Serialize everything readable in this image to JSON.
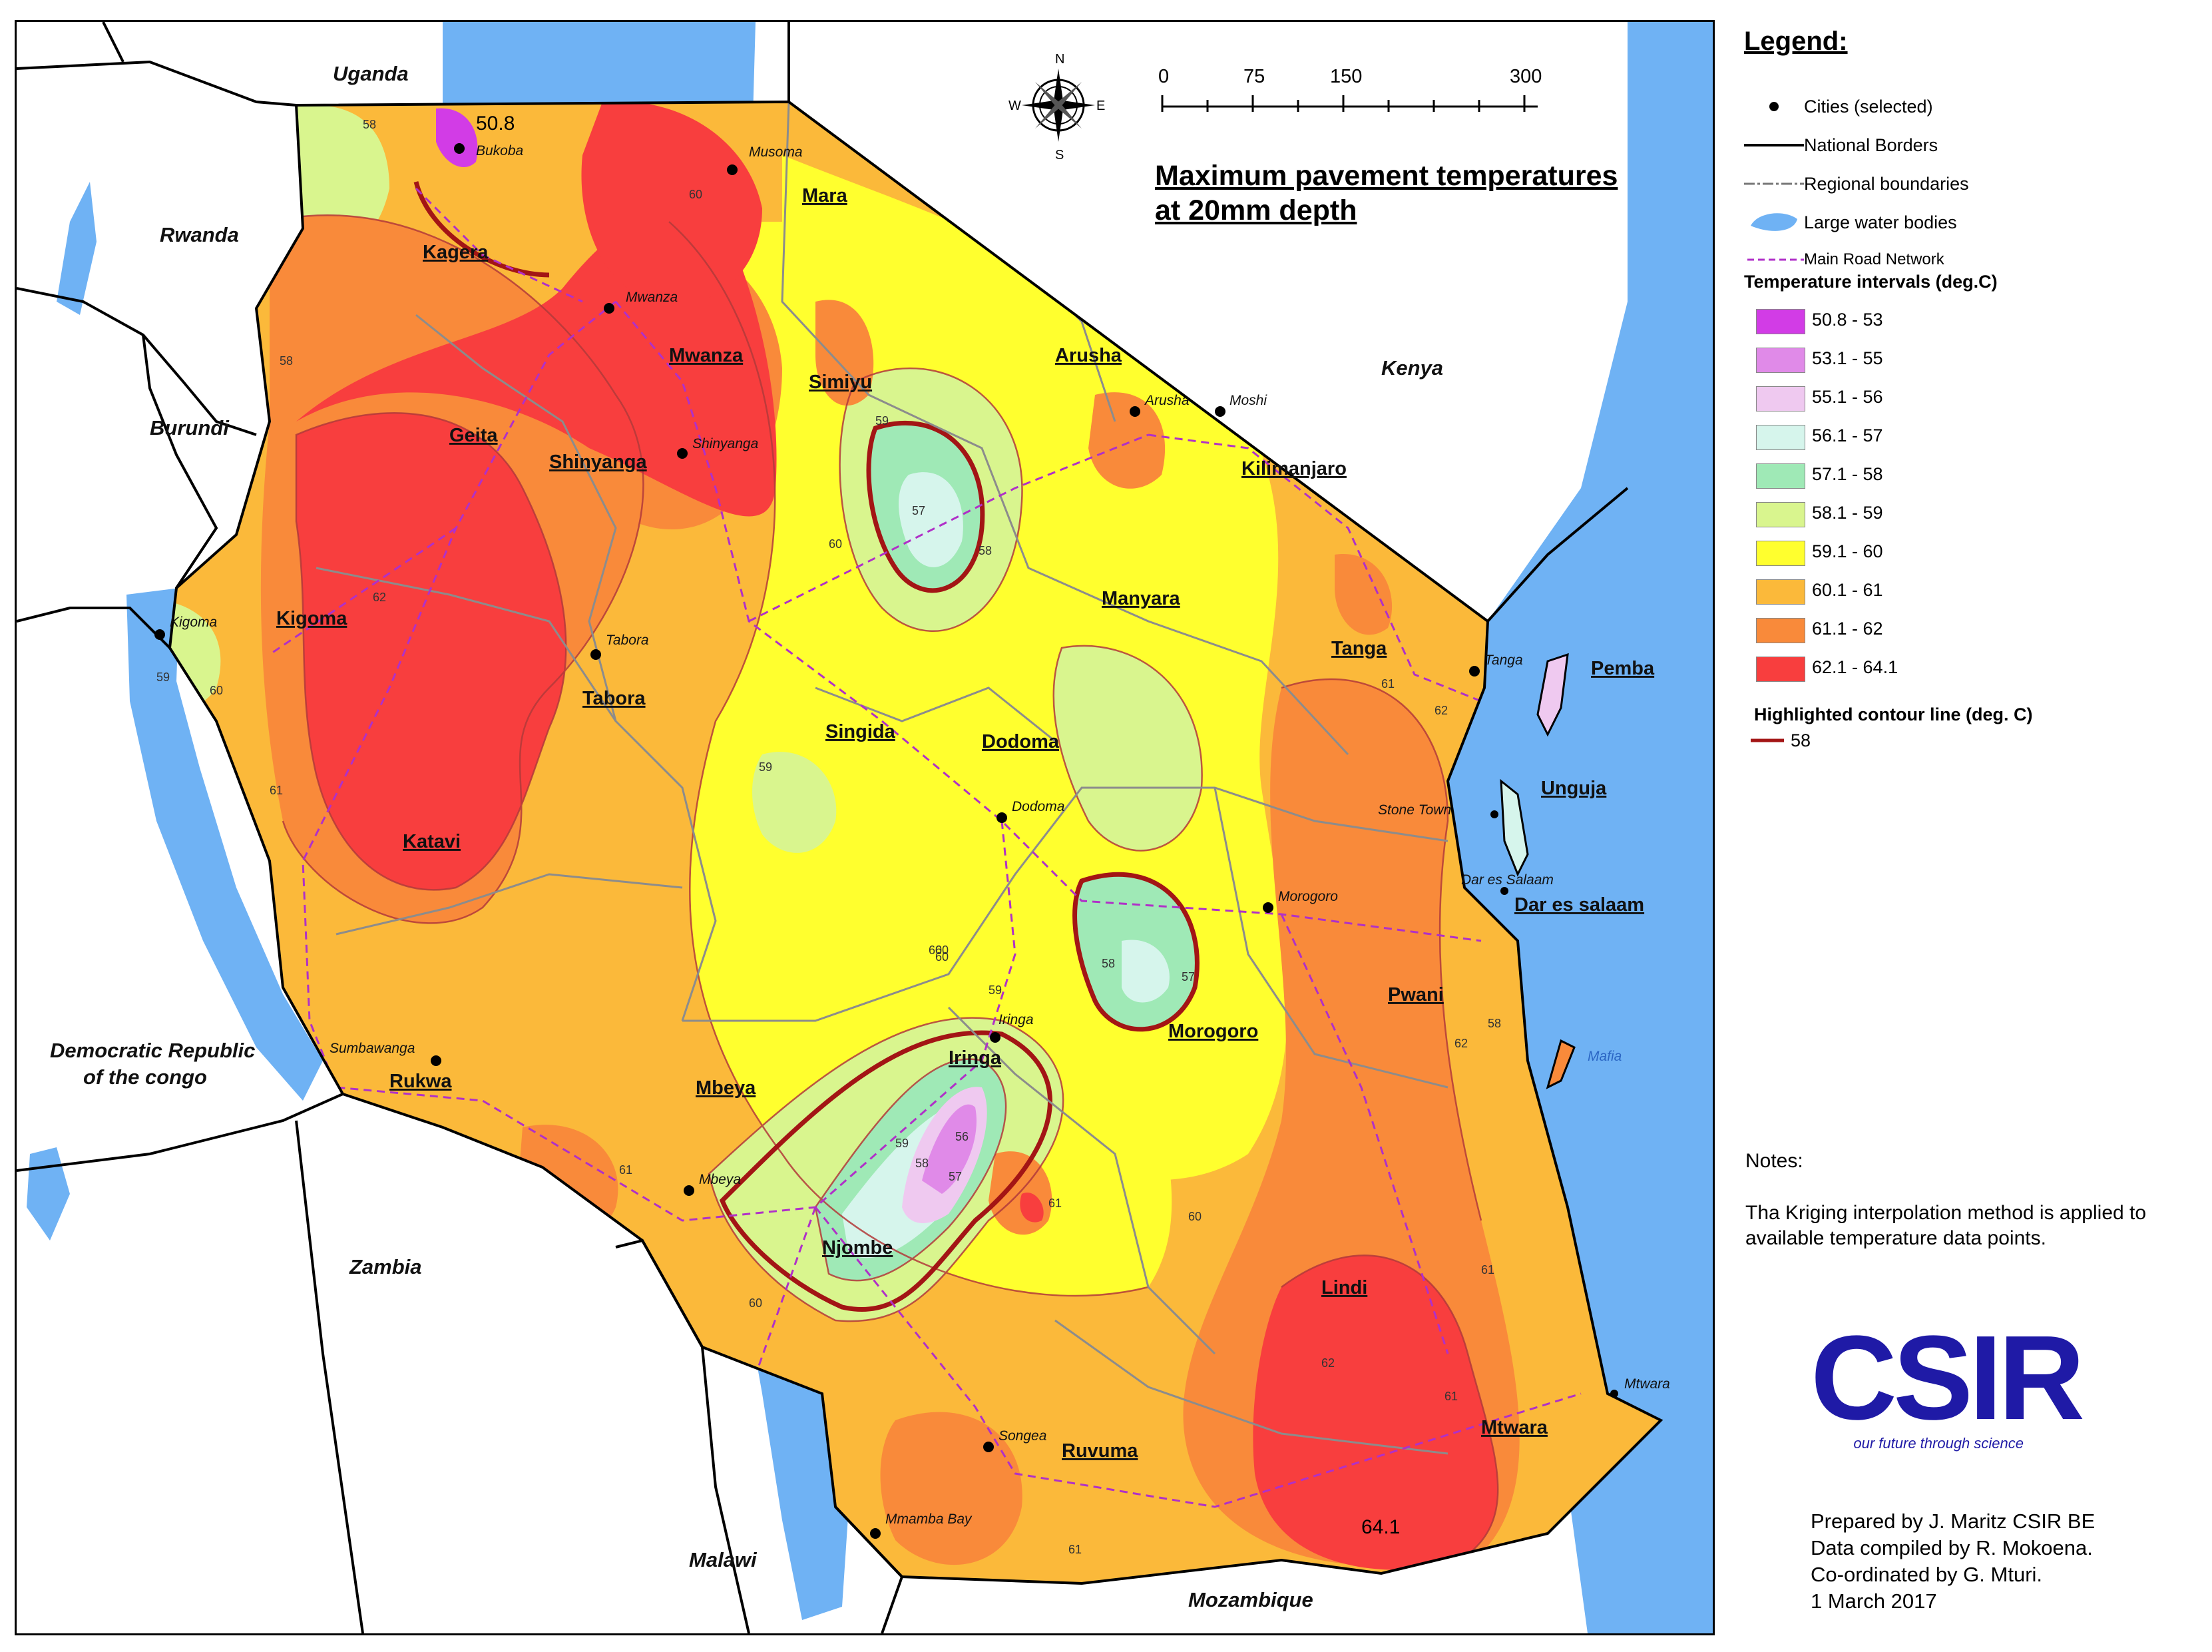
{
  "title": [
    "Maximum pavement temperatures",
    "at 20mm depth"
  ],
  "scale": {
    "ticks": [
      "0",
      "75",
      "150",
      "300 Kilometers"
    ]
  },
  "compass": {
    "n": "N",
    "s": "S",
    "e": "E",
    "w": "W"
  },
  "countries": [
    "Uganda",
    "Rwanda",
    "Burundi",
    "Kenya",
    "Democratic Republic",
    "of the congo",
    "Zambia",
    "Malawi",
    "Mozambique"
  ],
  "regions": [
    "Kagera",
    "Mara",
    "Mwanza",
    "Simiyu",
    "Arusha",
    "Kilimanjaro",
    "Geita",
    "Shinyanga",
    "Kigoma",
    "Tabora",
    "Manyara",
    "Tanga",
    "Pemba",
    "Singida",
    "Dodoma",
    "Unguja",
    "Katavi",
    "Dar es salaam",
    "Pwani",
    "Morogoro",
    "Rukwa",
    "Mbeya",
    "Iringa",
    "Njombe",
    "Lindi",
    "Mtwara",
    "Ruvuma"
  ],
  "cities": [
    "Bukoba",
    "Musoma",
    "Mwanza",
    "Shinyanga",
    "Arusha",
    "Moshi",
    "Kigoma",
    "Tabora",
    "Tanga",
    "Dodoma",
    "Stone Town",
    "Dar es Salaam",
    "Morogoro",
    "Sumbawanga",
    "Iringa",
    "Mbeya",
    "Mafia",
    "Mtwara",
    "Songea",
    "Mmamba Bay"
  ],
  "map_annotations": {
    "min_value": "50.8",
    "max_value": "64.1"
  },
  "contour_labels": [
    "58",
    "58",
    "60",
    "62",
    "59",
    "61",
    "60",
    "59",
    "57",
    "58",
    "60",
    "62",
    "61",
    "61",
    "60",
    "59",
    "58",
    "57",
    "60",
    "61",
    "62",
    "61",
    "60",
    "59",
    "58",
    "57",
    "56",
    "58",
    "60",
    "61",
    "62",
    "59",
    "60",
    "61"
  ],
  "legend": {
    "title": "Legend:",
    "cities": "Cities (selected)",
    "borders": "National Borders",
    "regional": "Regional boundaries",
    "water": "Large water bodies",
    "roads": "Main Road Network",
    "intervals_title": "Temperature intervals (deg.C)",
    "intervals": [
      {
        "label": "50.8 - 53",
        "color": "#d23ce6"
      },
      {
        "label": "53.1 - 55",
        "color": "#e08ae8"
      },
      {
        "label": "55.1 - 56",
        "color": "#efc9f0"
      },
      {
        "label": "56.1 - 57",
        "color": "#d6f5ec"
      },
      {
        "label": "57.1 - 58",
        "color": "#9fe9b6"
      },
      {
        "label": "58.1 - 59",
        "color": "#d9f58e"
      },
      {
        "label": "59.1 - 60",
        "color": "#ffff2e"
      },
      {
        "label": "60.1 - 61",
        "color": "#fbb93a"
      },
      {
        "label": "61.1 - 62",
        "color": "#f98a3a"
      },
      {
        "label": "62.1 - 64.1",
        "color": "#f83e3e"
      }
    ],
    "highlight_title": "Highlighted contour line (deg. C)",
    "highlight_value": "58"
  },
  "notes": {
    "heading": "Notes:",
    "lines": [
      "Tha Kriging interpolation method is applied to",
      "available temperature data points."
    ]
  },
  "logo": {
    "text": "CSIR",
    "tagline": "our future through science"
  },
  "credits": [
    "Prepared by  J. Maritz CSIR BE",
    "Data compiled by R. Mokoena.",
    "Co-ordinated by G. Mturi.",
    "1 March 2017"
  ],
  "colors": {
    "water": "#6fb2f4",
    "road": "#b030c8",
    "highlight_contour": "#a31515",
    "region_boundary": "#8c8c8c"
  }
}
